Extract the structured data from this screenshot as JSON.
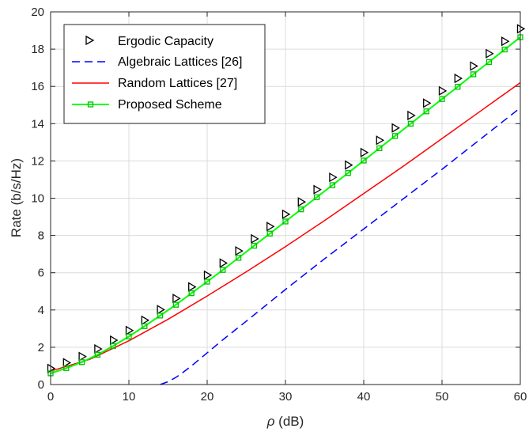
{
  "chart_data": {
    "type": "line",
    "xlabel_symbol": "ρ",
    "xlabel_unit": " (dB)",
    "ylabel": "Rate (b/s/Hz)",
    "xlim": [
      0,
      60
    ],
    "ylim": [
      0,
      20
    ],
    "xticks": [
      0,
      10,
      20,
      30,
      40,
      50,
      60
    ],
    "yticks": [
      0,
      2,
      4,
      6,
      8,
      10,
      12,
      14,
      16,
      18,
      20
    ],
    "grid": true,
    "legend_position": "top-left",
    "series": [
      {
        "name": "Ergodic Capacity",
        "style": "markers",
        "marker": "triangle-right",
        "color": "#000000",
        "x": [
          0,
          2,
          4,
          6,
          8,
          10,
          12,
          14,
          16,
          18,
          20,
          22,
          24,
          26,
          28,
          30,
          32,
          34,
          36,
          38,
          40,
          42,
          44,
          46,
          48,
          50,
          52,
          54,
          56,
          58,
          60
        ],
        "y": [
          0.86,
          1.17,
          1.5,
          1.91,
          2.38,
          2.9,
          3.45,
          4.02,
          4.62,
          5.24,
          5.87,
          6.52,
          7.17,
          7.82,
          8.48,
          9.14,
          9.8,
          10.46,
          11.12,
          11.78,
          12.45,
          13.11,
          13.77,
          14.44,
          15.1,
          15.76,
          16.43,
          17.09,
          17.76,
          18.42,
          19.09
        ]
      },
      {
        "name": "Algebraic Lattices [26]",
        "style": "dashed",
        "color": "#0000ff",
        "x": [
          14.0,
          15,
          16,
          17,
          18,
          20,
          22,
          25,
          30,
          35,
          40,
          45,
          50,
          55,
          60
        ],
        "y": [
          0,
          0.15,
          0.38,
          0.68,
          1.0,
          1.7,
          2.4,
          3.4,
          5.1,
          6.75,
          8.35,
          9.95,
          11.55,
          13.2,
          14.85
        ]
      },
      {
        "name": "Random Lattices [27]",
        "style": "solid",
        "color": "#ff0000",
        "x": [
          0,
          5,
          10,
          15,
          20,
          25,
          30,
          35,
          40,
          45,
          50,
          55,
          60
        ],
        "y": [
          0.72,
          1.35,
          2.35,
          3.5,
          4.75,
          6.05,
          7.4,
          8.8,
          10.25,
          11.7,
          13.2,
          14.7,
          16.2
        ]
      },
      {
        "name": "Proposed Scheme",
        "style": "line-markers",
        "marker": "square",
        "color": "#00ff00",
        "x": [
          0,
          2,
          4,
          6,
          8,
          10,
          12,
          14,
          16,
          18,
          20,
          22,
          24,
          26,
          28,
          30,
          32,
          34,
          36,
          38,
          40,
          42,
          44,
          46,
          48,
          50,
          52,
          54,
          56,
          58,
          60
        ],
        "y": [
          0.6,
          0.88,
          1.2,
          1.6,
          2.07,
          2.58,
          3.13,
          3.7,
          4.28,
          4.9,
          5.52,
          6.15,
          6.8,
          7.45,
          8.1,
          8.75,
          9.4,
          10.05,
          10.7,
          11.35,
          12.02,
          12.68,
          13.34,
          14.0,
          14.66,
          15.32,
          15.98,
          16.65,
          17.31,
          17.98,
          18.64
        ]
      }
    ]
  }
}
